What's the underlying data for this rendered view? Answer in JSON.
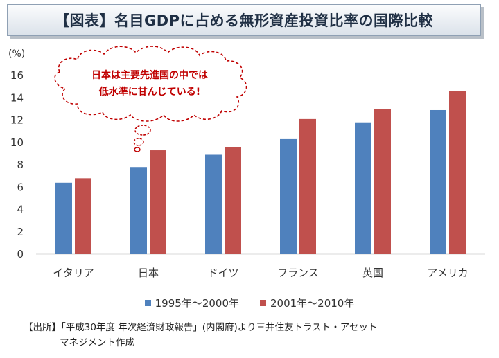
{
  "title": "【図表】名目GDPに占める無形資産投資比率の国際比較",
  "chart_data": {
    "type": "bar",
    "unit_label": "(%)",
    "categories": [
      "イタリア",
      "日本",
      "ドイツ",
      "フランス",
      "英国",
      "アメリカ"
    ],
    "series": [
      {
        "name": "1995年～2000年",
        "color": "#4f81bd",
        "values": [
          6.4,
          7.8,
          8.9,
          10.3,
          11.8,
          12.9
        ]
      },
      {
        "name": "2001年～2010年",
        "color": "#c0504d",
        "values": [
          6.8,
          9.3,
          9.6,
          12.1,
          13.0,
          14.6
        ]
      }
    ],
    "ylim": [
      0,
      16
    ],
    "yticks": [
      0,
      2,
      4,
      6,
      8,
      10,
      12,
      14,
      16
    ],
    "grid": false,
    "legend_position": "bottom"
  },
  "callout": {
    "line1": "日本は主要先進国の中では",
    "line2": "低水準に甘んじている!",
    "color": "#c00000"
  },
  "source": {
    "line1": "【出所】「平成30年度 年次経済財政報告」(内閣府)より三井住友トラスト・アセット",
    "line2": "マネジメント作成"
  }
}
